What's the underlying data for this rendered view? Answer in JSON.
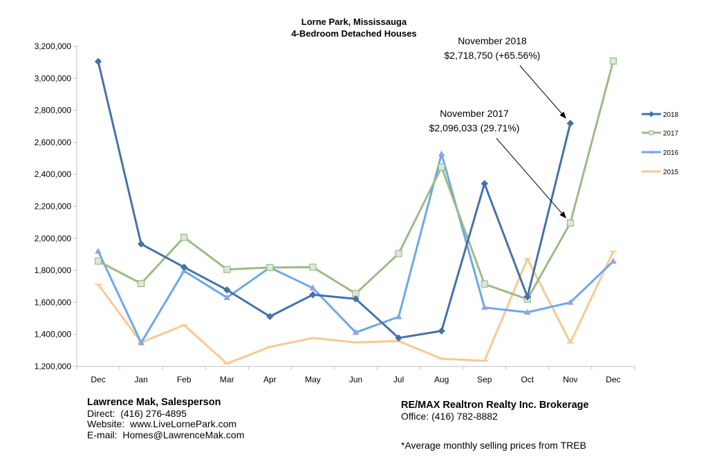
{
  "chart_data": {
    "type": "line",
    "title": "Lorne Park, Mississauga",
    "subtitle": "4-Bedroom Detached Houses",
    "categories": [
      "Dec",
      "Jan",
      "Feb",
      "Mar",
      "Apr",
      "May",
      "Jun",
      "Jul",
      "Aug",
      "Sep",
      "Oct",
      "Nov",
      "Dec"
    ],
    "ylim": [
      1200000,
      3200000
    ],
    "yticks": [
      1200000,
      1400000,
      1600000,
      1800000,
      2000000,
      2200000,
      2400000,
      2600000,
      2800000,
      3000000,
      3200000
    ],
    "ytick_labels": [
      "1,200,000",
      "1,400,000",
      "1,600,000",
      "1,800,000",
      "2,000,000",
      "2,200,000",
      "2,400,000",
      "2,600,000",
      "2,800,000",
      "3,000,000",
      "3,200,000"
    ],
    "grid": false,
    "legend_position": "right",
    "series": [
      {
        "name": "2018",
        "color": "#4472a8",
        "marker": "diamond",
        "values": [
          3105000,
          1965000,
          1820000,
          1678000,
          1512000,
          1648000,
          1622000,
          1378000,
          1422000,
          2342000,
          1635000,
          2718750,
          null
        ]
      },
      {
        "name": "2017",
        "color": "#9bbb83",
        "marker": "square",
        "values": [
          1858000,
          1718000,
          2007000,
          1806000,
          1818000,
          1820000,
          1655000,
          1905000,
          2445000,
          1715000,
          1620000,
          2096033,
          3108000
        ]
      },
      {
        "name": "2016",
        "color": "#6aa8ee",
        "marker": "triangle",
        "values": [
          1920000,
          1348000,
          1797000,
          1630000,
          1818000,
          1690000,
          1412000,
          1510000,
          2528000,
          1568000,
          1538000,
          1600000,
          1857000
        ]
      },
      {
        "name": "2015",
        "color": "#fac890",
        "marker": "dash",
        "values": [
          1712000,
          1350000,
          1458000,
          1218000,
          1322000,
          1378000,
          1350000,
          1358000,
          1248000,
          1235000,
          1872000,
          1348000,
          1918000
        ]
      }
    ],
    "annotations": [
      {
        "line1": "November 2018",
        "line2": "$2,718,750 (+65.56%)",
        "series": "2018",
        "index": 11
      },
      {
        "line1": "November 2017",
        "line2": "$2,096,033 (29.71%)",
        "series": "2017",
        "index": 11
      }
    ]
  },
  "footer": {
    "agent_name": "Lawrence Mak, Salesperson",
    "direct": "Direct:  (416) 276-4895",
    "website": "Website:  www.LiveLornePark.com",
    "email": "E-mail:  Homes@LawrenceMak.com",
    "brokerage": "RE/MAX Realtron Realty Inc. Brokerage",
    "office": "Office: (416) 782-8882",
    "note": "*Average monthly selling prices from TREB"
  }
}
